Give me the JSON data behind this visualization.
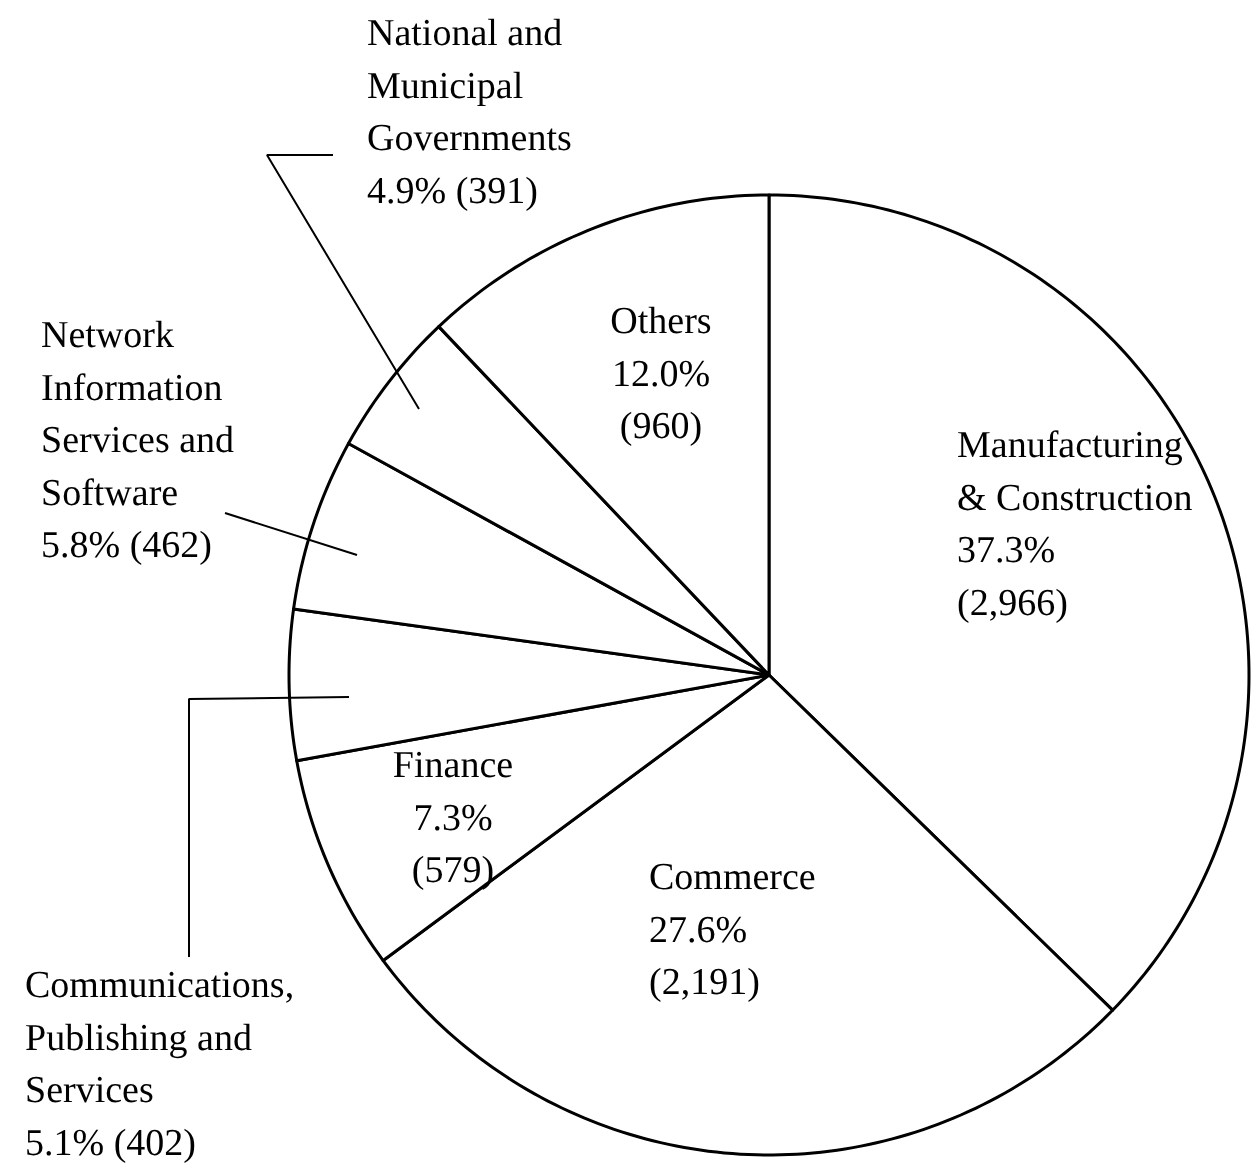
{
  "chart_data": {
    "type": "pie",
    "categories": [
      "Manufacturing\n& Construction",
      "Commerce",
      "Finance",
      "Communications,\nPublishing and\nServices",
      "Network\nInformation\nServices and\nSoftware",
      "National and\nMunicipal\nGovernments",
      "Others"
    ],
    "values": [
      2966,
      2191,
      579,
      402,
      462,
      391,
      960
    ],
    "value_labels": [
      "37.3%\n(2,966)",
      "27.6%\n(2,191)",
      "7.3%\n(579)",
      "5.1% (402)",
      "5.8% (462)",
      "4.9% (391)",
      "12.0%\n(960)"
    ],
    "colors": [
      "#ffffff",
      "#ffffff",
      "#ffffff",
      "#ffffff",
      "#ffffff",
      "#ffffff",
      "#ffffff"
    ]
  }
}
